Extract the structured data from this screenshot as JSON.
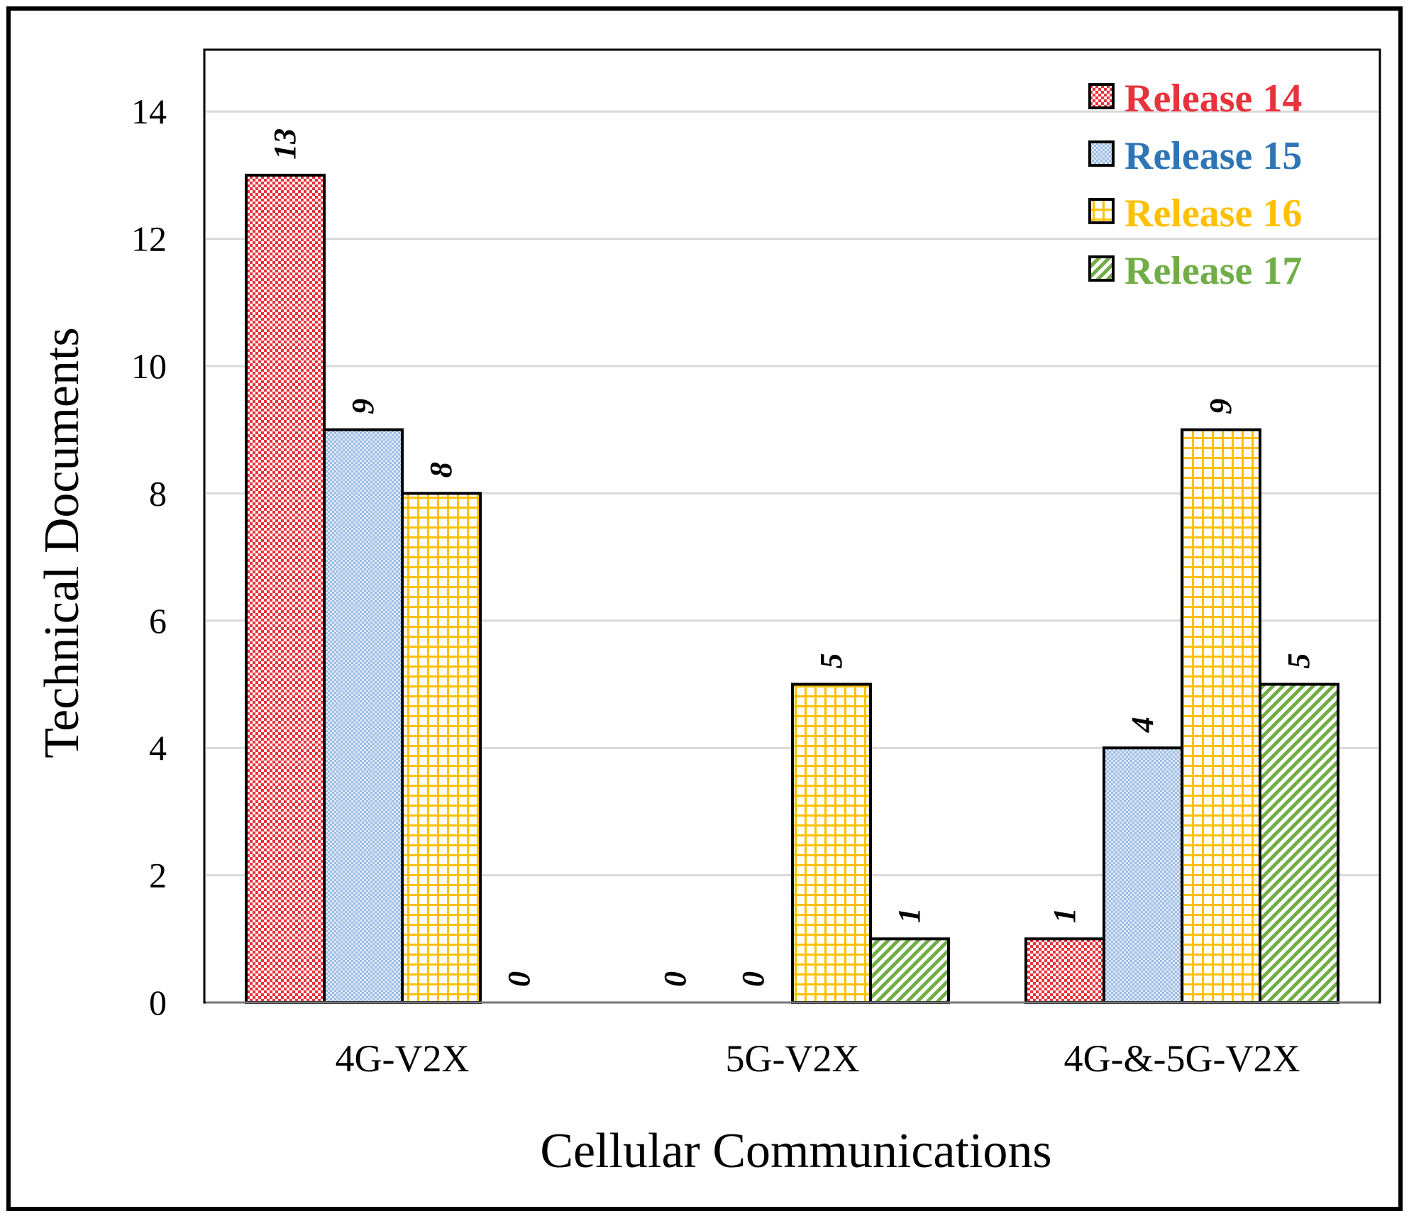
{
  "chart_data": {
    "type": "bar",
    "title": "",
    "xlabel": "Cellular Communications",
    "ylabel": "Technical Documents",
    "ylim": [
      0,
      15
    ],
    "yticks": [
      0,
      2,
      4,
      6,
      8,
      10,
      12,
      14
    ],
    "grid": true,
    "legend_position": "top-right",
    "categories": [
      "4G-V2X",
      "5G-V2X",
      "4G-&-5G-V2X"
    ],
    "series": [
      {
        "name": "Release 14",
        "values": [
          13,
          0,
          1
        ],
        "color": "#e8323c",
        "pattern": "checker"
      },
      {
        "name": "Release 15",
        "values": [
          9,
          0,
          4
        ],
        "color": "#2e75b6",
        "fill": "#a9c6e8",
        "pattern": "fine-dots"
      },
      {
        "name": "Release 16",
        "values": [
          8,
          5,
          9
        ],
        "color": "#ffc000",
        "pattern": "grid"
      },
      {
        "name": "Release 17",
        "values": [
          0,
          1,
          5
        ],
        "color": "#70ad47",
        "pattern": "diagonal"
      }
    ]
  }
}
